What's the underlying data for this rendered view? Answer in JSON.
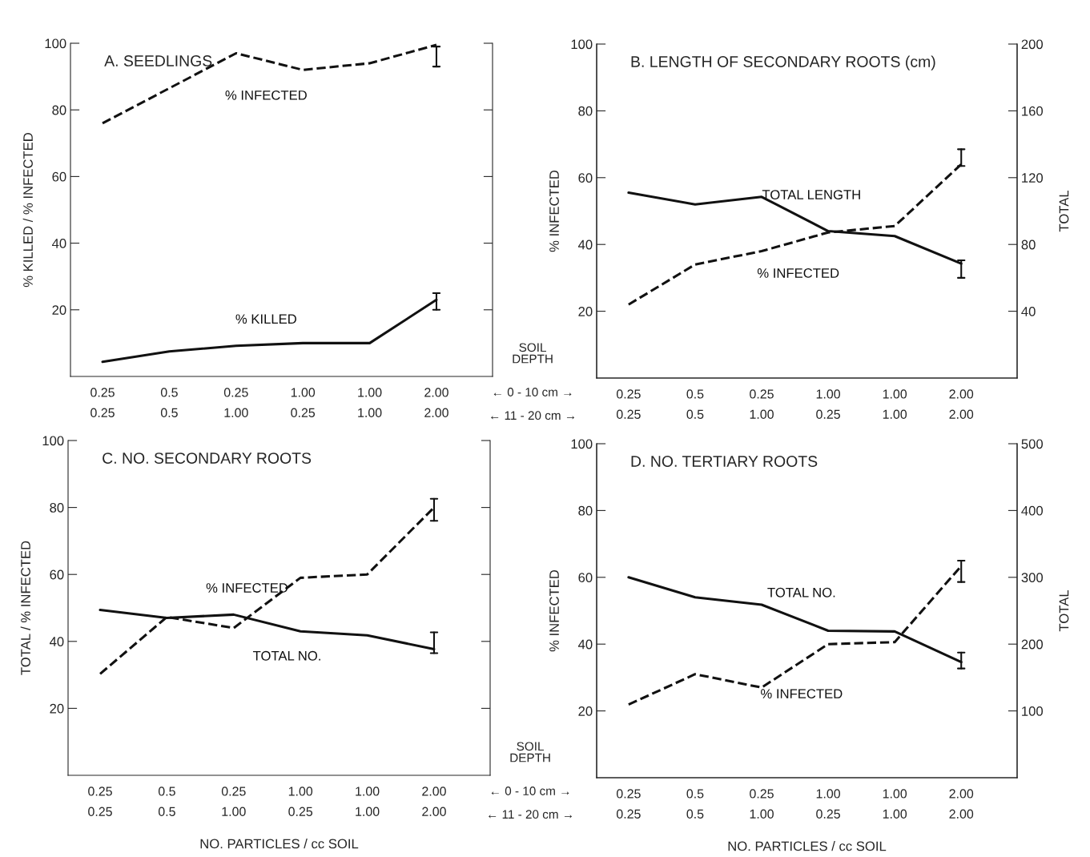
{
  "chart_data": [
    {
      "type": "line",
      "title": "A. SEEDLINGS",
      "ylabel": "% KILLED / % INFECTED",
      "categories": [
        "0.25\n0.25",
        "0.5\n0.5",
        "0.25\n1.00",
        "1.00\n0.25",
        "1.00\n1.00",
        "2.00\n2.00"
      ],
      "ylim": [
        0,
        100
      ],
      "yticks": [
        20,
        40,
        60,
        80,
        100
      ],
      "grid": false,
      "legend": false,
      "marker": "none",
      "annotations": [
        "SOIL\nDEPTH",
        "← 0 - 10 cm →",
        "← 11 - 20 cm →"
      ],
      "series": [
        {
          "name": "% INFECTED",
          "color": "#111111",
          "line_style": "dashed",
          "values": [
            76,
            86.5,
            97,
            92,
            94,
            99.5
          ],
          "errors": [
            null,
            null,
            null,
            null,
            null,
            [
              93,
              99
            ]
          ]
        },
        {
          "name": "% KILLED",
          "color": "#111111",
          "line_style": "solid",
          "values": [
            4.4,
            7.5,
            9.2,
            10,
            10,
            23
          ],
          "errors": [
            null,
            null,
            null,
            null,
            null,
            [
              20,
              25
            ]
          ]
        }
      ]
    },
    {
      "type": "line",
      "title": "B. LENGTH OF SECONDARY ROOTS (cm)",
      "ylabel": "% INFECTED",
      "y2label": "TOTAL",
      "categories": [
        "0.25\n0.25",
        "0.5\n0.5",
        "0.25\n1.00",
        "1.00\n0.25",
        "1.00\n1.00",
        "2.00\n2.00"
      ],
      "ylim": [
        0,
        100
      ],
      "yticks": [
        20,
        40,
        60,
        80,
        100
      ],
      "y2lim": [
        0,
        200
      ],
      "y2ticks": [
        40,
        80,
        120,
        160,
        200
      ],
      "grid": false,
      "legend": false,
      "marker": "none",
      "series": [
        {
          "name": "TOTAL LENGTH",
          "color": "#111111",
          "line_style": "solid",
          "axis": "y2",
          "values": [
            111,
            104,
            108.5,
            88,
            85,
            68.5
          ],
          "errors": [
            null,
            null,
            null,
            null,
            null,
            [
              60,
              70.5
            ]
          ]
        },
        {
          "name": "% INFECTED",
          "color": "#111111",
          "line_style": "dashed",
          "values": [
            22,
            34,
            38,
            43.6,
            45.5,
            64
          ],
          "errors": [
            null,
            null,
            null,
            null,
            null,
            [
              63.5,
              68.5
            ]
          ]
        }
      ]
    },
    {
      "type": "line",
      "title": "C. NO. SECONDARY ROOTS",
      "ylabel": "TOTAL / % INFECTED",
      "xlabel": "NO. PARTICLES / cc SOIL",
      "categories": [
        "0.25\n0.25",
        "0.5\n0.5",
        "0.25\n1.00",
        "1.00\n0.25",
        "1.00\n1.00",
        "2.00\n2.00"
      ],
      "ylim": [
        0,
        100
      ],
      "yticks": [
        20,
        40,
        60,
        80,
        100
      ],
      "grid": false,
      "legend": false,
      "marker": "none",
      "annotations": [
        "SOIL\nDEPTH",
        "← 0 - 10 cm →",
        "← 11 - 20 cm →"
      ],
      "series": [
        {
          "name": "% INFECTED",
          "color": "#111111",
          "line_style": "dashed",
          "values": [
            30.3,
            47.3,
            44,
            59,
            60,
            80
          ],
          "errors": [
            null,
            null,
            null,
            null,
            null,
            [
              76,
              82.6
            ]
          ]
        },
        {
          "name": "TOTAL NO.",
          "color": "#111111",
          "line_style": "solid",
          "values": [
            49.4,
            47,
            48,
            43,
            41.8,
            37.7
          ],
          "errors": [
            null,
            null,
            null,
            null,
            null,
            [
              36.5,
              42.7
            ]
          ]
        }
      ]
    },
    {
      "type": "line",
      "title": "D. NO. TERTIARY ROOTS",
      "ylabel": "% INFECTED",
      "y2label": "TOTAL",
      "xlabel": "NO. PARTICLES / cc SOIL",
      "categories": [
        "0.25\n0.25",
        "0.5\n0.5",
        "0.25\n1.00",
        "1.00\n0.25",
        "1.00\n1.00",
        "2.00\n2.00"
      ],
      "ylim": [
        0,
        100
      ],
      "yticks": [
        20,
        40,
        60,
        80,
        100
      ],
      "y2lim": [
        0,
        500
      ],
      "y2ticks": [
        100,
        200,
        300,
        400,
        500
      ],
      "grid": false,
      "legend": false,
      "marker": "none",
      "series": [
        {
          "name": "TOTAL NO.",
          "color": "#111111",
          "line_style": "solid",
          "axis": "y2",
          "values": [
            300,
            270,
            259,
            220,
            219,
            173
          ],
          "errors": [
            null,
            null,
            null,
            null,
            null,
            [
              163.5,
              187.4
            ]
          ]
        },
        {
          "name": "% INFECTED",
          "color": "#111111",
          "line_style": "dashed",
          "values": [
            21.9,
            31,
            27,
            40,
            40.6,
            63.4
          ],
          "errors": [
            null,
            null,
            null,
            null,
            null,
            [
              58.6,
              65
            ]
          ]
        }
      ]
    }
  ]
}
